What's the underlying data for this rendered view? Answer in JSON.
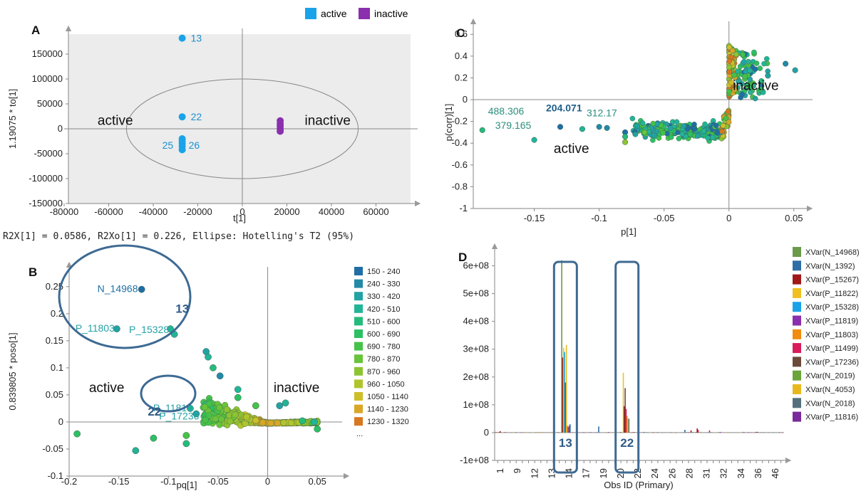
{
  "legend_top": [
    {
      "label": "active",
      "color": "#1aa3e8"
    },
    {
      "label": "inactive",
      "color": "#8a2fae"
    }
  ],
  "chart_data": [
    {
      "panel": "A",
      "type": "scatter",
      "xlabel": "t[1]",
      "ylabel": "1.19075 * to[1]",
      "xlim": [
        -80000,
        80000
      ],
      "ylim": [
        -150000,
        190000
      ],
      "xticks": [
        -80000,
        -60000,
        -40000,
        -20000,
        0,
        20000,
        40000,
        60000
      ],
      "yticks": [
        -150000,
        -100000,
        -50000,
        0,
        50000,
        100000,
        150000
      ],
      "footer": "R2X[1] = 0.0586, R2Xo[1] = 0.226, Ellipse: Hotelling's T2 (95%)",
      "ellipse": {
        "cx": 0,
        "cy": 0,
        "rx": 52000,
        "ry": 100000
      },
      "series": [
        {
          "name": "active",
          "color": "#1aa3e8",
          "points": [
            [
              -27000,
              182000
            ],
            [
              -27000,
              24000
            ],
            [
              -27000,
              -20000
            ],
            [
              -27000,
              -25000
            ],
            [
              -27000,
              -30000
            ],
            [
              -27000,
              -35000
            ],
            [
              -27000,
              -42000
            ]
          ]
        },
        {
          "name": "inactive",
          "color": "#8a2fae",
          "points": [
            [
              17000,
              16000
            ],
            [
              17000,
              10000
            ],
            [
              17000,
              5000
            ],
            [
              17000,
              0
            ],
            [
              17000,
              -5000
            ]
          ]
        }
      ],
      "point_labels": [
        {
          "text": "13",
          "x": -27000,
          "y": 182000,
          "dx": 12,
          "dy": 5
        },
        {
          "text": "22",
          "x": -27000,
          "y": 24000,
          "dx": 12,
          "dy": 5
        },
        {
          "text": "25",
          "x": -27000,
          "y": -33000,
          "dx": -28,
          "dy": 5
        },
        {
          "text": "26",
          "x": -27000,
          "y": -33000,
          "dx": 9,
          "dy": 5
        }
      ],
      "annotations": [
        {
          "text": "active",
          "x": -65000,
          "y": 8000
        },
        {
          "text": "inactive",
          "x": 28000,
          "y": 8000
        }
      ]
    },
    {
      "panel": "B",
      "type": "scatter",
      "xlabel": "pq[1]",
      "ylabel": "0.839805 * poso[1]",
      "xlim": [
        -0.2,
        0.075
      ],
      "ylim": [
        -0.1,
        0.28
      ],
      "xticks": [
        -0.2,
        -0.15,
        -0.1,
        -0.05,
        0,
        0.05
      ],
      "yticks": [
        -0.1,
        -0.05,
        0,
        0.05,
        0.1,
        0.15,
        0.2,
        0.25
      ],
      "legend": {
        "entries": [
          "150 - 240",
          "240 - 330",
          "330 - 420",
          "420 - 510",
          "510 - 600",
          "600 - 690",
          "690 - 780",
          "780 - 870",
          "870 - 960",
          "960 - 1050",
          "1050 - 1140",
          "1140 - 1230",
          "1230 - 1320"
        ],
        "colors": [
          "#1f6fa6",
          "#2389a7",
          "#23a2a4",
          "#22b497",
          "#25bb7c",
          "#2cc064",
          "#45c248",
          "#68c43a",
          "#8dc432",
          "#b0c52c",
          "#cdbf28",
          "#d9a725",
          "#d7771f"
        ],
        "more": "..."
      },
      "points": [
        [
          -0.127,
          0.245,
          0
        ],
        [
          -0.152,
          0.172,
          2
        ],
        [
          -0.098,
          0.172,
          3
        ],
        [
          -0.094,
          0.162,
          3
        ],
        [
          -0.062,
          0.13,
          2
        ],
        [
          -0.06,
          0.12,
          3
        ],
        [
          -0.055,
          0.1,
          4
        ],
        [
          -0.048,
          0.085,
          1
        ],
        [
          -0.078,
          0.025,
          3
        ],
        [
          -0.072,
          0.015,
          2
        ],
        [
          -0.192,
          -0.022,
          5
        ],
        [
          -0.133,
          -0.053,
          3
        ],
        [
          -0.115,
          -0.03,
          5
        ],
        [
          -0.082,
          -0.025,
          6
        ],
        [
          -0.082,
          -0.04,
          4
        ],
        [
          -0.03,
          0.06,
          3
        ],
        [
          -0.03,
          0.045,
          5
        ],
        [
          -0.012,
          0.03,
          6
        ],
        [
          0.012,
          0.03,
          2
        ],
        [
          0.018,
          0.035,
          3
        ],
        [
          0.035,
          0.002,
          4
        ],
        [
          0.047,
          0.0,
          3
        ],
        [
          0.05,
          -0.013,
          5
        ]
      ],
      "point_labels": [
        {
          "text": "N_14968",
          "x": -0.127,
          "y": 0.245,
          "dx": -62,
          "dy": 4,
          "color": "#1f6fa6"
        },
        {
          "text": "P_11803",
          "x": -0.152,
          "y": 0.172,
          "dx": -58,
          "dy": 4,
          "color": "#23a2a4"
        },
        {
          "text": "P_15328",
          "x": -0.098,
          "y": 0.172,
          "dx": -58,
          "dy": 6,
          "color": "#23a2a4"
        },
        {
          "text": "P_11819",
          "x": -0.078,
          "y": 0.025,
          "dx": -52,
          "dy": 4,
          "color": "#23a2a4"
        },
        {
          "text": "P_17236",
          "x": -0.072,
          "y": 0.015,
          "dx": -52,
          "dy": 8,
          "color": "#23a2a4"
        }
      ],
      "annotations": [
        {
          "text": "active",
          "x": -0.18,
          "y": 0.055
        },
        {
          "text": "inactive",
          "x": 0.006,
          "y": 0.055
        }
      ],
      "box_labels": [
        {
          "text": "13",
          "x": -0.086,
          "y": 0.202
        },
        {
          "text": "22",
          "x": -0.114,
          "y": 0.012
        }
      ]
    },
    {
      "panel": "C",
      "type": "scatter",
      "xlabel": "p[1]",
      "ylabel": "p(corr)[1]",
      "xlim": [
        -0.197,
        0.06
      ],
      "ylim": [
        -1,
        0.68
      ],
      "xticks": [
        -0.15,
        -0.1,
        -0.05,
        0,
        0.05
      ],
      "yticks": [
        -1,
        -0.8,
        -0.6,
        -0.4,
        -0.2,
        0,
        0.2,
        0.4,
        0.6
      ],
      "points": [
        [
          -0.19,
          -0.28,
          4
        ],
        [
          -0.15,
          -0.37,
          3
        ],
        [
          -0.13,
          -0.25,
          0
        ],
        [
          -0.113,
          -0.27,
          3
        ],
        [
          -0.1,
          -0.25,
          1
        ],
        [
          -0.094,
          -0.26,
          1
        ],
        [
          -0.08,
          -0.3,
          0
        ],
        [
          -0.08,
          -0.34,
          4
        ],
        [
          -0.08,
          -0.39,
          8
        ],
        [
          -0.065,
          -0.3,
          7
        ],
        [
          0.0436,
          0.33,
          1
        ],
        [
          0.051,
          0.27,
          2
        ],
        [
          0.03,
          0.22,
          2
        ],
        [
          0.025,
          0.17,
          4
        ]
      ],
      "point_labels": [
        {
          "text": "488.306",
          "x": -0.19,
          "y": -0.28,
          "dx": 8,
          "dy": -22,
          "bold": false,
          "color": "#2a8f7d"
        },
        {
          "text": "379.165",
          "x": -0.19,
          "y": -0.28,
          "dx": 18,
          "dy": -2,
          "bold": false,
          "color": "#2a8f7d"
        },
        {
          "text": "204.071",
          "x": -0.13,
          "y": -0.25,
          "dx": -20,
          "dy": -22,
          "bold": true,
          "color": "#1f5f8b"
        },
        {
          "text": "312.17",
          "x": -0.113,
          "y": -0.27,
          "dx": 6,
          "dy": -18,
          "bold": false,
          "color": "#2a8f7d"
        }
      ],
      "annotations": [
        {
          "text": "active",
          "x": -0.135,
          "y": -0.49
        },
        {
          "text": "inactive",
          "x": 0.003,
          "y": 0.09
        }
      ]
    },
    {
      "panel": "D",
      "type": "bar",
      "xlabel": "Obs ID (Primary)",
      "ylabel": "",
      "ylim": [
        -100000000,
        650000000
      ],
      "yticks": [
        -100000000,
        0,
        100000000,
        200000000,
        300000000,
        400000000,
        500000000,
        600000000
      ],
      "ytick_labels": [
        "-1e+08",
        "0",
        "1e+08",
        "2e+08",
        "3e+08",
        "4e+08",
        "5e+08",
        "6e+08"
      ],
      "xtick_labels": [
        "1",
        "9",
        "12",
        "13",
        "14",
        "17",
        "19",
        "20",
        "22",
        "24",
        "26",
        "28",
        "31",
        "32",
        "34",
        "36",
        "46"
      ],
      "n_obs": 47,
      "series": [
        {
          "name": "XVar(N_14968)",
          "color": "#6a9a4a"
        },
        {
          "name": "XVar(N_1392)",
          "color": "#2e6ea6"
        },
        {
          "name": "XVar(P_15267)",
          "color": "#a01818"
        },
        {
          "name": "XVar(P_11822)",
          "color": "#f0c020"
        },
        {
          "name": "XVar(P_15328)",
          "color": "#1aa3e8"
        },
        {
          "name": "XVar(P_11819)",
          "color": "#8a2fae"
        },
        {
          "name": "XVar(P_11803)",
          "color": "#f08c10"
        },
        {
          "name": "XVar(P_11499)",
          "color": "#d81c5c"
        },
        {
          "name": "XVar(P_17236)",
          "color": "#6b4a3a"
        },
        {
          "name": "XVar(N_2019)",
          "color": "#6aa43a"
        },
        {
          "name": "XVar(N_4053)",
          "color": "#e8b820"
        },
        {
          "name": "XVar(N_2018)",
          "color": "#54707e"
        },
        {
          "name": "XVar(P_11816)",
          "color": "#7a2a9a"
        }
      ],
      "bars": [
        {
          "obs": 12,
          "series": 0,
          "value": 620000000
        },
        {
          "obs": 12,
          "series": 2,
          "value": 270000000
        },
        {
          "obs": 12,
          "series": 3,
          "value": 305000000
        },
        {
          "obs": 12,
          "series": 4,
          "value": 290000000
        },
        {
          "obs": 12,
          "series": 8,
          "value": 180000000
        },
        {
          "obs": 12,
          "series": 10,
          "value": 315000000
        },
        {
          "obs": 12,
          "series": 6,
          "value": 25000000
        },
        {
          "obs": 12,
          "series": 11,
          "value": 20000000
        },
        {
          "obs": 12,
          "series": 7,
          "value": 25000000
        },
        {
          "obs": 12,
          "series": 1,
          "value": 30000000
        },
        {
          "obs": 22,
          "series": 3,
          "value": 215000000
        },
        {
          "obs": 22,
          "series": 2,
          "value": 95000000
        },
        {
          "obs": 22,
          "series": 8,
          "value": 160000000
        },
        {
          "obs": 22,
          "series": 7,
          "value": 85000000
        },
        {
          "obs": 22,
          "series": 6,
          "value": 60000000
        },
        {
          "obs": 22,
          "series": 10,
          "value": 50000000
        },
        {
          "obs": 22,
          "series": 11,
          "value": 50000000
        },
        {
          "obs": 18,
          "series": 1,
          "value": 22000000
        },
        {
          "obs": 34,
          "series": 2,
          "value": 15000000
        },
        {
          "obs": 34,
          "series": 7,
          "value": 10000000
        },
        {
          "obs": 32,
          "series": 1,
          "value": 10000000
        },
        {
          "obs": 33,
          "series": 2,
          "value": 8000000
        },
        {
          "obs": 36,
          "series": 7,
          "value": 8000000
        },
        {
          "obs": 2,
          "series": 2,
          "value": 5000000
        }
      ],
      "box_labels": [
        {
          "text": "13",
          "obs": 12
        },
        {
          "text": "22",
          "obs": 22
        }
      ]
    }
  ]
}
